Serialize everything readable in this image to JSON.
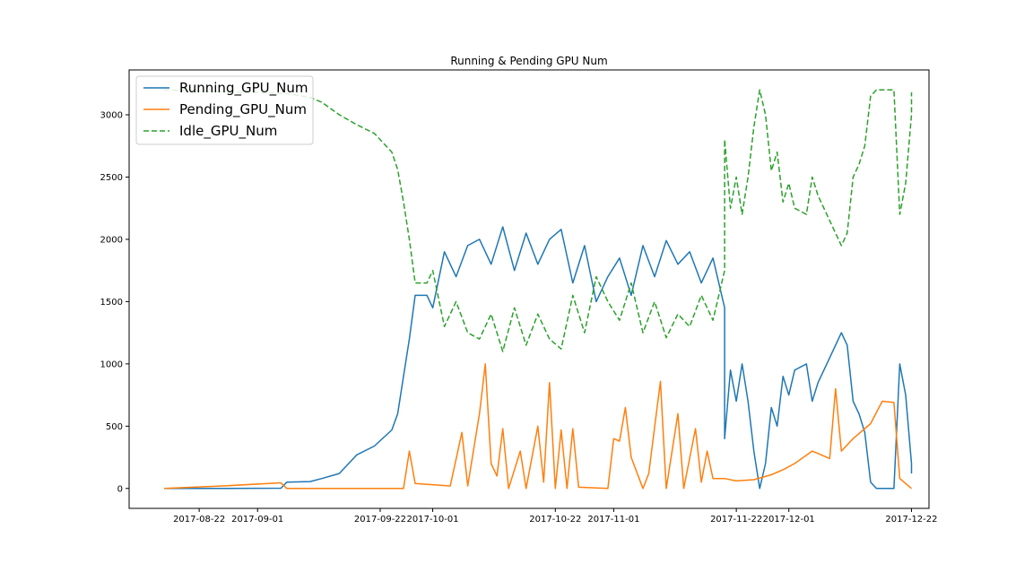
{
  "chart_data": {
    "type": "line",
    "title": "Running & Pending GPU Num",
    "xlabel": "",
    "ylabel": "",
    "x_axis_type": "date",
    "xlim": [
      "2017-08-10",
      "2017-12-25"
    ],
    "ylim": [
      -160,
      3360
    ],
    "x_ticks": [
      "2017-08-22",
      "2017-09-01",
      "2017-09-22",
      "2017-10-01",
      "2017-10-22",
      "2017-11-01",
      "2017-11-22",
      "2017-12-01",
      "2017-12-22"
    ],
    "y_ticks": [
      0,
      500,
      1000,
      1500,
      2000,
      2500,
      3000
    ],
    "grid": false,
    "legend_position": "top-left",
    "series": [
      {
        "name": "Running_GPU_Num",
        "color": "#1f77b4",
        "style": "solid",
        "points": [
          [
            "2017-08-16",
            0
          ],
          [
            "2017-08-26",
            0
          ],
          [
            "2017-09-05",
            2
          ],
          [
            "2017-09-06",
            50
          ],
          [
            "2017-09-10",
            55
          ],
          [
            "2017-09-12",
            80
          ],
          [
            "2017-09-15",
            120
          ],
          [
            "2017-09-18",
            270
          ],
          [
            "2017-09-21",
            340
          ],
          [
            "2017-09-24",
            470
          ],
          [
            "2017-09-25",
            600
          ],
          [
            "2017-09-26",
            900
          ],
          [
            "2017-09-27",
            1200
          ],
          [
            "2017-09-28",
            1550
          ],
          [
            "2017-09-30",
            1550
          ],
          [
            "2017-10-01",
            1450
          ],
          [
            "2017-10-03",
            1900
          ],
          [
            "2017-10-05",
            1700
          ],
          [
            "2017-10-07",
            1950
          ],
          [
            "2017-10-09",
            2000
          ],
          [
            "2017-10-11",
            1800
          ],
          [
            "2017-10-13",
            2100
          ],
          [
            "2017-10-15",
            1750
          ],
          [
            "2017-10-17",
            2050
          ],
          [
            "2017-10-19",
            1800
          ],
          [
            "2017-10-21",
            2000
          ],
          [
            "2017-10-23",
            2080
          ],
          [
            "2017-10-25",
            1650
          ],
          [
            "2017-10-27",
            1950
          ],
          [
            "2017-10-29",
            1500
          ],
          [
            "2017-10-31",
            1700
          ],
          [
            "2017-11-02",
            1850
          ],
          [
            "2017-11-04",
            1550
          ],
          [
            "2017-11-06",
            1950
          ],
          [
            "2017-11-08",
            1700
          ],
          [
            "2017-11-10",
            1990
          ],
          [
            "2017-11-12",
            1800
          ],
          [
            "2017-11-14",
            1900
          ],
          [
            "2017-11-16",
            1650
          ],
          [
            "2017-11-18",
            1850
          ],
          [
            "2017-11-20",
            1450
          ],
          [
            "2017-11-20",
            400
          ],
          [
            "2017-11-21",
            950
          ],
          [
            "2017-11-22",
            700
          ],
          [
            "2017-11-23",
            1000
          ],
          [
            "2017-11-24",
            700
          ],
          [
            "2017-11-25",
            300
          ],
          [
            "2017-11-26",
            0
          ],
          [
            "2017-11-27",
            200
          ],
          [
            "2017-11-28",
            650
          ],
          [
            "2017-11-29",
            500
          ],
          [
            "2017-11-30",
            900
          ],
          [
            "2017-12-01",
            750
          ],
          [
            "2017-12-02",
            950
          ],
          [
            "2017-12-04",
            1000
          ],
          [
            "2017-12-05",
            700
          ],
          [
            "2017-12-06",
            850
          ],
          [
            "2017-12-08",
            1050
          ],
          [
            "2017-12-10",
            1250
          ],
          [
            "2017-12-11",
            1150
          ],
          [
            "2017-12-12",
            700
          ],
          [
            "2017-12-13",
            600
          ],
          [
            "2017-12-14",
            450
          ],
          [
            "2017-12-15",
            50
          ],
          [
            "2017-12-16",
            0
          ],
          [
            "2017-12-19",
            0
          ],
          [
            "2017-12-20",
            1000
          ],
          [
            "2017-12-21",
            750
          ],
          [
            "2017-12-22",
            200
          ],
          [
            "2017-12-22",
            120
          ]
        ]
      },
      {
        "name": "Pending_GPU_Num",
        "color": "#ff7f0e",
        "style": "solid",
        "points": [
          [
            "2017-08-16",
            0
          ],
          [
            "2017-08-26",
            20
          ],
          [
            "2017-09-05",
            45
          ],
          [
            "2017-09-06",
            0
          ],
          [
            "2017-09-26",
            0
          ],
          [
            "2017-09-27",
            300
          ],
          [
            "2017-09-28",
            40
          ],
          [
            "2017-10-04",
            20
          ],
          [
            "2017-10-06",
            450
          ],
          [
            "2017-10-07",
            20
          ],
          [
            "2017-10-09",
            600
          ],
          [
            "2017-10-10",
            1000
          ],
          [
            "2017-10-11",
            200
          ],
          [
            "2017-10-12",
            100
          ],
          [
            "2017-10-13",
            480
          ],
          [
            "2017-10-14",
            0
          ],
          [
            "2017-10-16",
            300
          ],
          [
            "2017-10-17",
            0
          ],
          [
            "2017-10-19",
            500
          ],
          [
            "2017-10-20",
            50
          ],
          [
            "2017-10-21",
            850
          ],
          [
            "2017-10-22",
            0
          ],
          [
            "2017-10-23",
            470
          ],
          [
            "2017-10-24",
            0
          ],
          [
            "2017-10-25",
            480
          ],
          [
            "2017-10-26",
            10
          ],
          [
            "2017-10-31",
            0
          ],
          [
            "2017-11-01",
            400
          ],
          [
            "2017-11-02",
            380
          ],
          [
            "2017-11-03",
            650
          ],
          [
            "2017-11-04",
            250
          ],
          [
            "2017-11-06",
            0
          ],
          [
            "2017-11-07",
            120
          ],
          [
            "2017-11-09",
            860
          ],
          [
            "2017-11-10",
            0
          ],
          [
            "2017-11-12",
            600
          ],
          [
            "2017-11-13",
            0
          ],
          [
            "2017-11-15",
            480
          ],
          [
            "2017-11-16",
            50
          ],
          [
            "2017-11-17",
            300
          ],
          [
            "2017-11-18",
            80
          ],
          [
            "2017-11-20",
            80
          ],
          [
            "2017-11-22",
            60
          ],
          [
            "2017-11-25",
            70
          ],
          [
            "2017-11-28",
            110
          ],
          [
            "2017-11-30",
            150
          ],
          [
            "2017-12-02",
            200
          ],
          [
            "2017-12-05",
            300
          ],
          [
            "2017-12-08",
            240
          ],
          [
            "2017-12-09",
            800
          ],
          [
            "2017-12-10",
            300
          ],
          [
            "2017-12-12",
            400
          ],
          [
            "2017-12-15",
            520
          ],
          [
            "2017-12-17",
            700
          ],
          [
            "2017-12-19",
            690
          ],
          [
            "2017-12-20",
            80
          ],
          [
            "2017-12-22",
            0
          ]
        ]
      },
      {
        "name": "Idle_GPU_Num",
        "color": "#2ca02c",
        "style": "dashed",
        "points": [
          [
            "2017-08-16",
            3200
          ],
          [
            "2017-09-06",
            3170
          ],
          [
            "2017-09-10",
            3140
          ],
          [
            "2017-09-12",
            3100
          ],
          [
            "2017-09-15",
            3000
          ],
          [
            "2017-09-18",
            2920
          ],
          [
            "2017-09-21",
            2850
          ],
          [
            "2017-09-24",
            2700
          ],
          [
            "2017-09-25",
            2560
          ],
          [
            "2017-09-26",
            2300
          ],
          [
            "2017-09-27",
            2000
          ],
          [
            "2017-09-28",
            1650
          ],
          [
            "2017-09-30",
            1650
          ],
          [
            "2017-10-01",
            1750
          ],
          [
            "2017-10-03",
            1300
          ],
          [
            "2017-10-05",
            1500
          ],
          [
            "2017-10-07",
            1250
          ],
          [
            "2017-10-09",
            1200
          ],
          [
            "2017-10-11",
            1400
          ],
          [
            "2017-10-13",
            1100
          ],
          [
            "2017-10-15",
            1450
          ],
          [
            "2017-10-17",
            1150
          ],
          [
            "2017-10-19",
            1400
          ],
          [
            "2017-10-21",
            1200
          ],
          [
            "2017-10-23",
            1120
          ],
          [
            "2017-10-25",
            1550
          ],
          [
            "2017-10-27",
            1250
          ],
          [
            "2017-10-29",
            1700
          ],
          [
            "2017-10-31",
            1500
          ],
          [
            "2017-11-02",
            1350
          ],
          [
            "2017-11-04",
            1650
          ],
          [
            "2017-11-06",
            1250
          ],
          [
            "2017-11-08",
            1500
          ],
          [
            "2017-11-10",
            1210
          ],
          [
            "2017-11-12",
            1400
          ],
          [
            "2017-11-14",
            1300
          ],
          [
            "2017-11-16",
            1550
          ],
          [
            "2017-11-18",
            1350
          ],
          [
            "2017-11-20",
            1750
          ],
          [
            "2017-11-20",
            2800
          ],
          [
            "2017-11-21",
            2250
          ],
          [
            "2017-11-22",
            2500
          ],
          [
            "2017-11-23",
            2200
          ],
          [
            "2017-11-24",
            2500
          ],
          [
            "2017-11-25",
            2900
          ],
          [
            "2017-11-26",
            3200
          ],
          [
            "2017-11-27",
            3000
          ],
          [
            "2017-11-28",
            2550
          ],
          [
            "2017-11-29",
            2700
          ],
          [
            "2017-11-30",
            2300
          ],
          [
            "2017-12-01",
            2450
          ],
          [
            "2017-12-02",
            2250
          ],
          [
            "2017-12-04",
            2200
          ],
          [
            "2017-12-05",
            2500
          ],
          [
            "2017-12-06",
            2350
          ],
          [
            "2017-12-08",
            2150
          ],
          [
            "2017-12-10",
            1950
          ],
          [
            "2017-12-11",
            2050
          ],
          [
            "2017-12-12",
            2500
          ],
          [
            "2017-12-13",
            2600
          ],
          [
            "2017-12-14",
            2750
          ],
          [
            "2017-12-15",
            3150
          ],
          [
            "2017-12-16",
            3200
          ],
          [
            "2017-12-19",
            3200
          ],
          [
            "2017-12-20",
            2200
          ],
          [
            "2017-12-21",
            2450
          ],
          [
            "2017-12-22",
            3000
          ],
          [
            "2017-12-22",
            3180
          ]
        ]
      }
    ]
  }
}
